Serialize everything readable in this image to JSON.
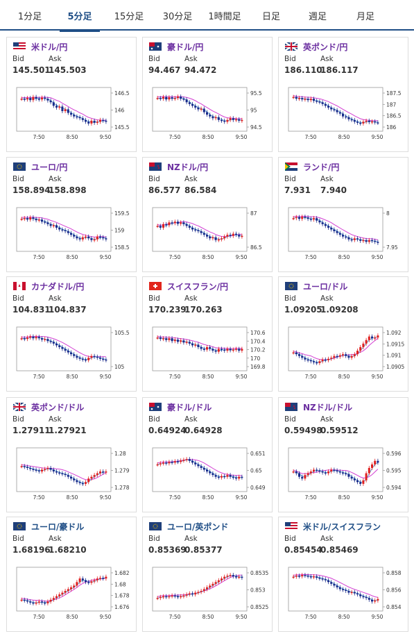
{
  "tabs": [
    {
      "label": "1分足",
      "active": false
    },
    {
      "label": "5分足",
      "active": true
    },
    {
      "label": "15分足",
      "active": false
    },
    {
      "label": "30分足",
      "active": false
    },
    {
      "label": "1時間足",
      "active": false
    },
    {
      "label": "日足",
      "active": false
    },
    {
      "label": "週足",
      "active": false
    },
    {
      "label": "月足",
      "active": false
    }
  ],
  "labels": {
    "bid": "Bid",
    "ask": "Ask"
  },
  "cards": [
    {
      "pair": "米ドル/円",
      "flag": "us",
      "color": "purple",
      "bid": "145.501",
      "ask": "145.503",
      "yticks": [
        "146.5",
        "146",
        "145.5"
      ],
      "xticks": [
        "7:50",
        "8:50",
        "9:50"
      ],
      "series": [
        0.8,
        0.78,
        0.82,
        0.76,
        0.85,
        0.8,
        0.78,
        0.83,
        0.8,
        0.75,
        0.7,
        0.6,
        0.55,
        0.58,
        0.45,
        0.5,
        0.4,
        0.35,
        0.3,
        0.28,
        0.25,
        0.2,
        0.15,
        0.1,
        0.18,
        0.12,
        0.15,
        0.2,
        0.18,
        0.15
      ]
    },
    {
      "pair": "豪ドル/円",
      "flag": "au",
      "color": "purple",
      "bid": "94.467",
      "ask": "94.472",
      "yticks": [
        "95.5",
        "95",
        "94.5"
      ],
      "xticks": [
        "7:50",
        "8:50",
        "9:50"
      ],
      "series": [
        0.82,
        0.8,
        0.85,
        0.78,
        0.84,
        0.8,
        0.82,
        0.86,
        0.8,
        0.78,
        0.7,
        0.65,
        0.6,
        0.55,
        0.5,
        0.52,
        0.42,
        0.35,
        0.3,
        0.25,
        0.28,
        0.2,
        0.18,
        0.15,
        0.2,
        0.25,
        0.2,
        0.22,
        0.18,
        0.2
      ]
    },
    {
      "pair": "英ポンド/円",
      "flag": "gb",
      "color": "purple",
      "bid": "186.110",
      "ask": "186.117",
      "yticks": [
        "187.5",
        "187",
        "186.5",
        "186"
      ],
      "xticks": [
        "7:50",
        "8:50",
        "9:50"
      ],
      "series": [
        0.85,
        0.8,
        0.82,
        0.78,
        0.8,
        0.76,
        0.8,
        0.74,
        0.72,
        0.7,
        0.65,
        0.6,
        0.55,
        0.5,
        0.48,
        0.42,
        0.38,
        0.3,
        0.28,
        0.22,
        0.2,
        0.15,
        0.12,
        0.1,
        0.15,
        0.18,
        0.14,
        0.16,
        0.13,
        0.12
      ]
    },
    {
      "pair": "ユーロ/円",
      "flag": "eu",
      "color": "purple",
      "bid": "158.894",
      "ask": "158.898",
      "yticks": [
        "159.5",
        "159",
        "158.5"
      ],
      "xticks": [
        "7:50",
        "8:50",
        "9:50"
      ],
      "series": [
        0.8,
        0.82,
        0.78,
        0.84,
        0.8,
        0.76,
        0.78,
        0.72,
        0.7,
        0.65,
        0.6,
        0.62,
        0.55,
        0.5,
        0.48,
        0.45,
        0.4,
        0.35,
        0.3,
        0.25,
        0.22,
        0.28,
        0.3,
        0.25,
        0.2,
        0.22,
        0.3,
        0.28,
        0.25,
        0.22
      ]
    },
    {
      "pair": "NZドル/円",
      "flag": "nz",
      "color": "purple",
      "bid": "86.577",
      "ask": "86.584",
      "yticks": [
        "87",
        "86.5"
      ],
      "xticks": [
        "7:50",
        "8:50",
        "9:50"
      ],
      "series": [
        0.6,
        0.55,
        0.65,
        0.62,
        0.7,
        0.68,
        0.72,
        0.66,
        0.7,
        0.65,
        0.6,
        0.55,
        0.5,
        0.48,
        0.45,
        0.4,
        0.35,
        0.3,
        0.25,
        0.28,
        0.2,
        0.22,
        0.25,
        0.3,
        0.35,
        0.32,
        0.38,
        0.35,
        0.3,
        0.32
      ]
    },
    {
      "pair": "ランド/円",
      "flag": "za",
      "color": "purple",
      "bid": "7.931",
      "ask": "7.940",
      "yticks": [
        "8",
        "7.95"
      ],
      "xticks": [
        "7:50",
        "8:50",
        "9:50"
      ],
      "series": [
        0.82,
        0.85,
        0.8,
        0.86,
        0.84,
        0.8,
        0.78,
        0.82,
        0.75,
        0.7,
        0.65,
        0.6,
        0.55,
        0.5,
        0.45,
        0.4,
        0.35,
        0.3,
        0.28,
        0.22,
        0.2,
        0.25,
        0.22,
        0.18,
        0.2,
        0.15,
        0.2,
        0.18,
        0.15,
        0.12
      ]
    },
    {
      "pair": "カナダドル/円",
      "flag": "ca",
      "color": "purple",
      "bid": "104.831",
      "ask": "104.837",
      "yticks": [
        "105.5",
        "105"
      ],
      "xticks": [
        "7:50",
        "8:50",
        "9:50"
      ],
      "series": [
        0.8,
        0.78,
        0.82,
        0.85,
        0.8,
        0.84,
        0.8,
        0.76,
        0.78,
        0.72,
        0.7,
        0.65,
        0.6,
        0.55,
        0.5,
        0.45,
        0.4,
        0.35,
        0.3,
        0.25,
        0.22,
        0.2,
        0.18,
        0.25,
        0.3,
        0.28,
        0.25,
        0.22,
        0.2,
        0.18
      ]
    },
    {
      "pair": "スイスフラン/円",
      "flag": "ch",
      "color": "purple",
      "bid": "170.239",
      "ask": "170.263",
      "yticks": [
        "170.6",
        "170.4",
        "170.2",
        "170",
        "169.8"
      ],
      "xticks": [
        "7:50",
        "8:50",
        "9:50"
      ],
      "series": [
        0.82,
        0.78,
        0.8,
        0.75,
        0.8,
        0.72,
        0.76,
        0.7,
        0.74,
        0.68,
        0.7,
        0.65,
        0.6,
        0.62,
        0.55,
        0.5,
        0.48,
        0.55,
        0.5,
        0.45,
        0.42,
        0.5,
        0.48,
        0.45,
        0.5,
        0.46,
        0.48,
        0.5,
        0.45,
        0.5
      ]
    },
    {
      "pair": "ユーロ/ドル",
      "flag": "eu",
      "color": "purple",
      "bid": "1.09205",
      "ask": "1.09208",
      "yticks": [
        "1.092",
        "1.0915",
        "1.091",
        "1.0905"
      ],
      "xticks": [
        "7:50",
        "8:50",
        "9:50"
      ],
      "series": [
        0.4,
        0.35,
        0.3,
        0.25,
        0.2,
        0.18,
        0.15,
        0.12,
        0.1,
        0.15,
        0.2,
        0.18,
        0.22,
        0.25,
        0.3,
        0.28,
        0.32,
        0.35,
        0.3,
        0.25,
        0.3,
        0.35,
        0.45,
        0.55,
        0.65,
        0.75,
        0.85,
        0.8,
        0.82,
        0.88
      ]
    },
    {
      "pair": "英ポンド/ドル",
      "flag": "gb",
      "color": "purple",
      "bid": "1.27911",
      "ask": "1.27921",
      "yticks": [
        "1.28",
        "1.279",
        "1.278"
      ],
      "xticks": [
        "7:50",
        "8:50",
        "9:50"
      ],
      "series": [
        0.6,
        0.58,
        0.55,
        0.52,
        0.5,
        0.48,
        0.45,
        0.5,
        0.52,
        0.55,
        0.5,
        0.45,
        0.42,
        0.4,
        0.38,
        0.35,
        0.3,
        0.25,
        0.2,
        0.15,
        0.12,
        0.1,
        0.15,
        0.25,
        0.3,
        0.35,
        0.4,
        0.45,
        0.42,
        0.45
      ]
    },
    {
      "pair": "豪ドル/ドル",
      "flag": "au",
      "color": "purple",
      "bid": "0.64924",
      "ask": "0.64928",
      "yticks": [
        "0.651",
        "0.65",
        "0.649"
      ],
      "xticks": [
        "7:50",
        "8:50",
        "9:50"
      ],
      "series": [
        0.65,
        0.68,
        0.7,
        0.68,
        0.72,
        0.7,
        0.74,
        0.72,
        0.76,
        0.78,
        0.8,
        0.75,
        0.7,
        0.65,
        0.6,
        0.55,
        0.5,
        0.45,
        0.4,
        0.35,
        0.3,
        0.28,
        0.32,
        0.3,
        0.35,
        0.3,
        0.28,
        0.25,
        0.3,
        0.28
      ]
    },
    {
      "pair": "NZドル/ドル",
      "flag": "nz",
      "color": "purple",
      "bid": "0.59498",
      "ask": "0.59512",
      "yticks": [
        "0.596",
        "0.595",
        "0.594"
      ],
      "xticks": [
        "7:50",
        "8:50",
        "9:50"
      ],
      "series": [
        0.45,
        0.4,
        0.3,
        0.25,
        0.35,
        0.4,
        0.45,
        0.5,
        0.48,
        0.45,
        0.42,
        0.4,
        0.45,
        0.5,
        0.48,
        0.45,
        0.42,
        0.4,
        0.38,
        0.3,
        0.25,
        0.2,
        0.15,
        0.1,
        0.2,
        0.4,
        0.55,
        0.65,
        0.75,
        0.7
      ]
    },
    {
      "pair": "ユーロ/豪ドル",
      "flag": "eu",
      "color": "blue",
      "bid": "1.68196",
      "ask": "1.68210",
      "yticks": [
        "1.682",
        "1.68",
        "1.678",
        "1.676"
      ],
      "xticks": [
        "7:50",
        "8:50",
        "9:50"
      ],
      "series": [
        0.2,
        0.18,
        0.15,
        0.12,
        0.1,
        0.12,
        0.15,
        0.12,
        0.1,
        0.15,
        0.2,
        0.25,
        0.3,
        0.35,
        0.4,
        0.45,
        0.5,
        0.55,
        0.6,
        0.7,
        0.8,
        0.75,
        0.7,
        0.68,
        0.72,
        0.75,
        0.8,
        0.82,
        0.8,
        0.85
      ]
    },
    {
      "pair": "ユーロ/英ポンド",
      "flag": "eu",
      "color": "blue",
      "bid": "0.85369",
      "ask": "0.85377",
      "yticks": [
        "0.8535",
        "0.853",
        "0.8525"
      ],
      "xticks": [
        "7:50",
        "8:50",
        "9:50"
      ],
      "series": [
        0.25,
        0.28,
        0.3,
        0.28,
        0.3,
        0.32,
        0.3,
        0.28,
        0.3,
        0.32,
        0.35,
        0.38,
        0.35,
        0.4,
        0.42,
        0.45,
        0.5,
        0.55,
        0.6,
        0.65,
        0.7,
        0.75,
        0.8,
        0.85,
        0.88,
        0.9,
        0.86,
        0.84,
        0.85,
        0.82
      ]
    },
    {
      "pair": "米ドル/スイスフラン",
      "flag": "us",
      "color": "blue",
      "bid": "0.85454",
      "ask": "0.85469",
      "yticks": [
        "0.858",
        "0.856",
        "0.854"
      ],
      "xticks": [
        "7:50",
        "8:50",
        "9:50"
      ],
      "series": [
        0.85,
        0.88,
        0.86,
        0.9,
        0.88,
        0.86,
        0.84,
        0.86,
        0.82,
        0.8,
        0.78,
        0.75,
        0.7,
        0.65,
        0.6,
        0.55,
        0.5,
        0.48,
        0.45,
        0.4,
        0.42,
        0.38,
        0.35,
        0.3,
        0.28,
        0.25,
        0.2,
        0.15,
        0.18,
        0.22
      ]
    }
  ]
}
